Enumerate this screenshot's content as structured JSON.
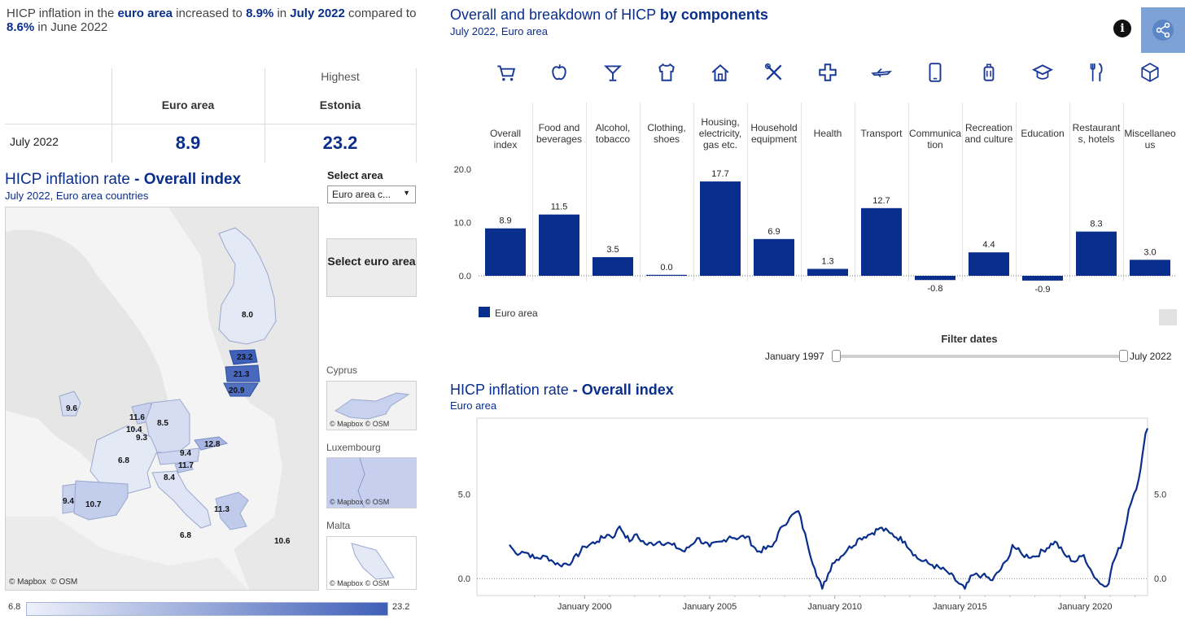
{
  "headline": {
    "p1": "HICP inflation in the ",
    "region": "euro area",
    "p2": "  increased to ",
    "current": "8.9%",
    "p3": " in ",
    "month": "July 2022",
    "p4": " compared to ",
    "previous": "8.6%",
    "p5": " in June 2022"
  },
  "summary": {
    "highest_label": "Highest",
    "col1": "Euro area",
    "col2": "Estonia",
    "row_label": "July 2022",
    "val1": "8.9",
    "val2": "23.2"
  },
  "map_section": {
    "title": "HICP inflation rate ",
    "title_bold": "- Overall index",
    "subtitle": "July 2022, Euro area countries",
    "select_label": "Select area",
    "select_value": "Euro area c...",
    "select_button": "Select euro area",
    "attribution_mapbox": "© Mapbox",
    "attribution_osm": "© OSM",
    "country_values": [
      "8.0",
      "23.2",
      "21.3",
      "20.9",
      "9.6",
      "11.6",
      "10.4",
      "9.3",
      "8.5",
      "6.8",
      "9.4",
      "12.8",
      "11.7",
      "8.4",
      "9.4",
      "10.7",
      "11.3",
      "6.8",
      "10.6"
    ],
    "insets": [
      "Cyprus",
      "Luxembourg",
      "Malta"
    ],
    "legend_min": "6.8",
    "legend_max": "23.2"
  },
  "components": {
    "title": "Overall and breakdown of HICP ",
    "title_bold": "by components",
    "subtitle": "July 2022, Euro area",
    "legend_label": "Euro area",
    "filter_title": "Filter dates",
    "filter_start": "January 1997",
    "filter_end": "July 2022"
  },
  "icons": [
    "info-icon",
    "share-icon",
    "cart-icon",
    "apple-icon",
    "cocktail-icon",
    "shirt-icon",
    "house-icon",
    "tools-icon",
    "cross-icon",
    "plane-icon",
    "phone-icon",
    "suitcase-icon",
    "graduation-cap-icon",
    "cutlery-icon",
    "cube-icon"
  ],
  "chart_data": [
    {
      "type": "bar",
      "title": "Overall and breakdown of HICP by components",
      "subtitle": "July 2022, Euro area",
      "categories": [
        "Overall index",
        "Food and beverages",
        "Alcohol, tobacco",
        "Clothing, shoes",
        "Housing, electricity, gas etc.",
        "Household equipment",
        "Health",
        "Transport",
        "Communica tion",
        "Recreation and culture",
        "Education",
        "Restaurant s, hotels",
        "Miscellaneo us"
      ],
      "series": [
        {
          "name": "Euro area",
          "values": [
            8.9,
            11.5,
            3.5,
            0.0,
            17.7,
            6.9,
            1.3,
            12.7,
            -0.8,
            4.4,
            -0.9,
            8.3,
            3.0
          ],
          "color": "#0a2e8c"
        }
      ],
      "yticks": [
        "0.0",
        "10.0",
        "20.0"
      ],
      "ylim": [
        -3,
        22
      ],
      "legend": "bottom-left"
    },
    {
      "type": "line",
      "title": "HICP inflation rate - Overall index",
      "subtitle": "Euro area",
      "xlabels": [
        "January 2000",
        "January 2005",
        "January 2010",
        "January 2015",
        "January 2020"
      ],
      "x_range": [
        1997.0,
        2022.5
      ],
      "yticks": [
        "0.0",
        "5.0"
      ],
      "ylim": [
        -1.0,
        9.5
      ],
      "series": [
        {
          "name": "Euro area",
          "color": "#0a2e8c",
          "points": [
            [
              1997.0,
              2.0
            ],
            [
              1997.25,
              1.5
            ],
            [
              1997.5,
              1.6
            ],
            [
              1997.75,
              1.5
            ],
            [
              1998.0,
              1.2
            ],
            [
              1998.5,
              1.3
            ],
            [
              1998.75,
              1.0
            ],
            [
              1999.0,
              0.8
            ],
            [
              1999.5,
              1.0
            ],
            [
              2000.0,
              1.9
            ],
            [
              2000.5,
              2.2
            ],
            [
              2000.9,
              2.6
            ],
            [
              2001.2,
              2.5
            ],
            [
              2001.4,
              3.1
            ],
            [
              2001.8,
              2.2
            ],
            [
              2002.0,
              2.6
            ],
            [
              2002.5,
              2.0
            ],
            [
              2003.0,
              2.2
            ],
            [
              2003.5,
              2.0
            ],
            [
              2004.0,
              1.6
            ],
            [
              2004.5,
              2.4
            ],
            [
              2005.0,
              1.9
            ],
            [
              2005.5,
              2.2
            ],
            [
              2005.8,
              2.5
            ],
            [
              2006.0,
              2.4
            ],
            [
              2006.5,
              2.5
            ],
            [
              2006.9,
              1.6
            ],
            [
              2007.5,
              1.9
            ],
            [
              2007.9,
              3.1
            ],
            [
              2008.2,
              3.6
            ],
            [
              2008.55,
              4.0
            ],
            [
              2008.9,
              2.1
            ],
            [
              2009.2,
              0.6
            ],
            [
              2009.5,
              -0.6
            ],
            [
              2009.9,
              0.9
            ],
            [
              2010.5,
              1.7
            ],
            [
              2011.0,
              2.4
            ],
            [
              2011.5,
              2.7
            ],
            [
              2011.8,
              3.0
            ],
            [
              2012.2,
              2.7
            ],
            [
              2012.8,
              2.2
            ],
            [
              2013.3,
              1.2
            ],
            [
              2013.9,
              0.8
            ],
            [
              2014.5,
              0.4
            ],
            [
              2014.9,
              -0.2
            ],
            [
              2015.2,
              -0.6
            ],
            [
              2015.5,
              0.2
            ],
            [
              2015.9,
              0.2
            ],
            [
              2016.3,
              -0.1
            ],
            [
              2016.9,
              1.1
            ],
            [
              2017.1,
              2.0
            ],
            [
              2017.5,
              1.4
            ],
            [
              2018.0,
              1.3
            ],
            [
              2018.8,
              2.2
            ],
            [
              2019.2,
              1.4
            ],
            [
              2019.6,
              1.0
            ],
            [
              2019.95,
              1.4
            ],
            [
              2020.3,
              0.3
            ],
            [
              2020.6,
              -0.3
            ],
            [
              2020.95,
              -0.3
            ],
            [
              2021.1,
              0.9
            ],
            [
              2021.5,
              2.2
            ],
            [
              2021.75,
              4.1
            ],
            [
              2021.95,
              5.0
            ],
            [
              2022.15,
              5.9
            ],
            [
              2022.3,
              7.4
            ],
            [
              2022.42,
              8.6
            ],
            [
              2022.5,
              8.9
            ]
          ]
        }
      ]
    }
  ]
}
